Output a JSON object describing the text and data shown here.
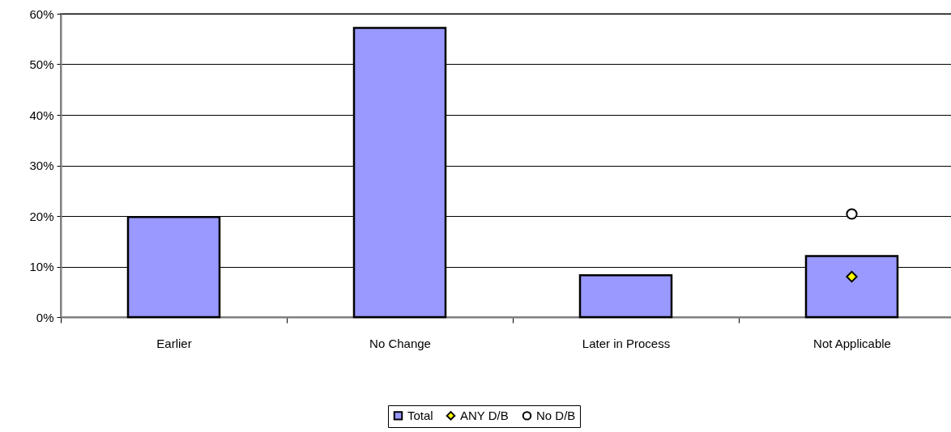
{
  "chart_data": {
    "type": "bar",
    "categories": [
      "Earlier",
      "No Change",
      "Later in Process",
      "Not Applicable"
    ],
    "series": [
      {
        "name": "Total",
        "color": "#9999ff",
        "values": [
          19.8,
          57.2,
          8.3,
          12.1
        ]
      },
      {
        "name": "ANY D/B",
        "type": "scatter",
        "marker": "diamond",
        "color": "#ffff00",
        "values": [
          null,
          null,
          null,
          8.0
        ]
      },
      {
        "name": "No D/B",
        "type": "scatter",
        "marker": "circle",
        "color": "#ffffff",
        "values": [
          null,
          null,
          null,
          20.4
        ]
      }
    ],
    "ylim": [
      0,
      60
    ],
    "yticks": [
      {
        "value": 0,
        "label": "0%"
      },
      {
        "value": 10,
        "label": "10%"
      },
      {
        "value": 20,
        "label": "20%"
      },
      {
        "value": 30,
        "label": "30%"
      },
      {
        "value": 40,
        "label": "40%"
      },
      {
        "value": 50,
        "label": "50%"
      },
      {
        "value": 60,
        "label": "60%"
      }
    ],
    "grid": "y",
    "legend": "bottom"
  }
}
